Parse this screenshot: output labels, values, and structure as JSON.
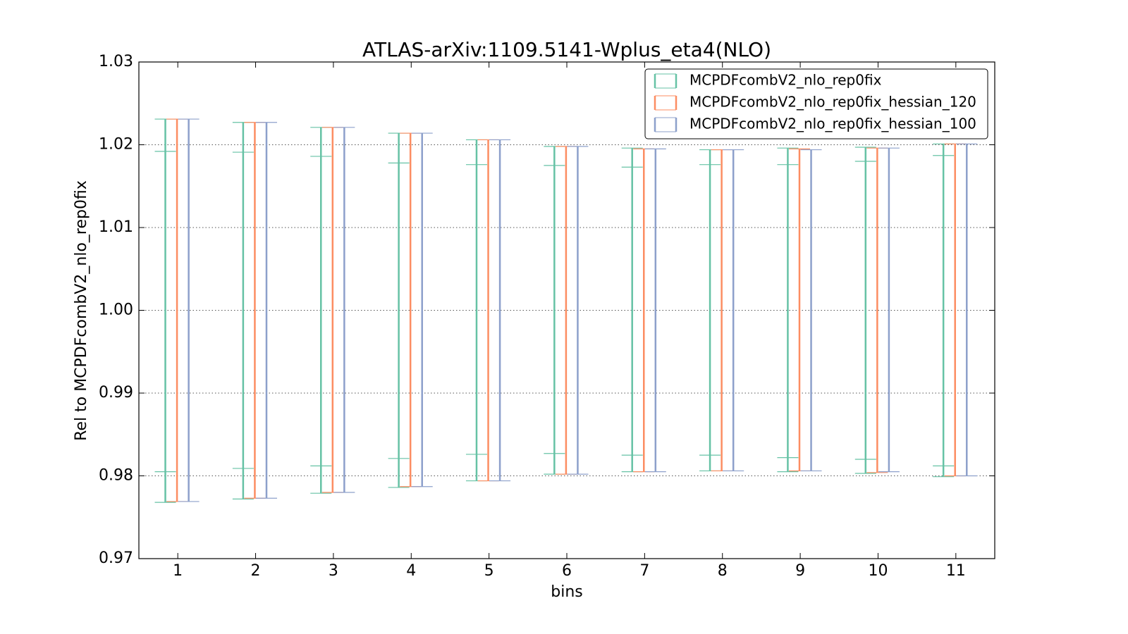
{
  "chart_data": {
    "type": "errorbar",
    "title": "ATLAS-arXiv:1109.5141-Wplus_eta4(NLO)",
    "x_label": "bins",
    "y_label": "Rel to MCPDFcombV2_nlo_rep0fix",
    "x": [
      1,
      2,
      3,
      4,
      5,
      6,
      7,
      8,
      9,
      10,
      11
    ],
    "xlim": [
      0.5,
      11.5
    ],
    "xticks": [
      1,
      2,
      3,
      4,
      5,
      6,
      7,
      8,
      9,
      10,
      11
    ],
    "ylim": [
      0.97,
      1.03
    ],
    "yticks": [
      0.97,
      0.98,
      0.99,
      {
        "value": 1.0,
        "label": "1.00"
      },
      1.01,
      1.02,
      1.03
    ],
    "grid": true,
    "legend": "upper right",
    "series": [
      {
        "name": "MCPDFcombV2_nlo_rep0fix",
        "color": "#66c2a5",
        "upper": [
          1.0231,
          1.0227,
          1.0221,
          1.0214,
          1.0206,
          1.0198,
          1.0196,
          1.0194,
          1.0196,
          1.0197,
          1.0201
        ],
        "lower": [
          0.9768,
          0.9772,
          0.9779,
          0.9786,
          0.9794,
          0.9802,
          0.9805,
          0.9806,
          0.9805,
          0.9803,
          0.9799
        ],
        "inner_upper": [
          1.0192,
          1.0191,
          1.0186,
          1.0178,
          1.0176,
          1.0175,
          1.0173,
          1.0176,
          1.0176,
          1.018,
          1.0187
        ],
        "inner_lower": [
          0.9805,
          0.9809,
          0.9812,
          0.9821,
          0.9826,
          0.9827,
          0.9825,
          0.9825,
          0.9822,
          0.982,
          0.9812
        ]
      },
      {
        "name": "MCPDFcombV2_nlo_rep0fix_hessian_120",
        "color": "#fc8d62",
        "upper": [
          1.0231,
          1.0227,
          1.0221,
          1.0214,
          1.0206,
          1.0198,
          1.0195,
          1.0194,
          1.0195,
          1.0196,
          1.0201
        ],
        "lower": [
          0.9769,
          0.9773,
          0.978,
          0.9787,
          0.9794,
          0.9802,
          0.9805,
          0.9806,
          0.9806,
          0.9804,
          0.98
        ]
      },
      {
        "name": "MCPDFcombV2_nlo_rep0fix_hessian_100",
        "color": "#8da0cb",
        "upper": [
          1.0231,
          1.0227,
          1.0221,
          1.0214,
          1.0206,
          1.0198,
          1.0195,
          1.0194,
          1.0194,
          1.0196,
          1.0201
        ],
        "lower": [
          0.9769,
          0.9773,
          0.978,
          0.9787,
          0.9794,
          0.9802,
          0.9805,
          0.9806,
          0.9806,
          0.9805,
          0.98
        ]
      }
    ]
  }
}
